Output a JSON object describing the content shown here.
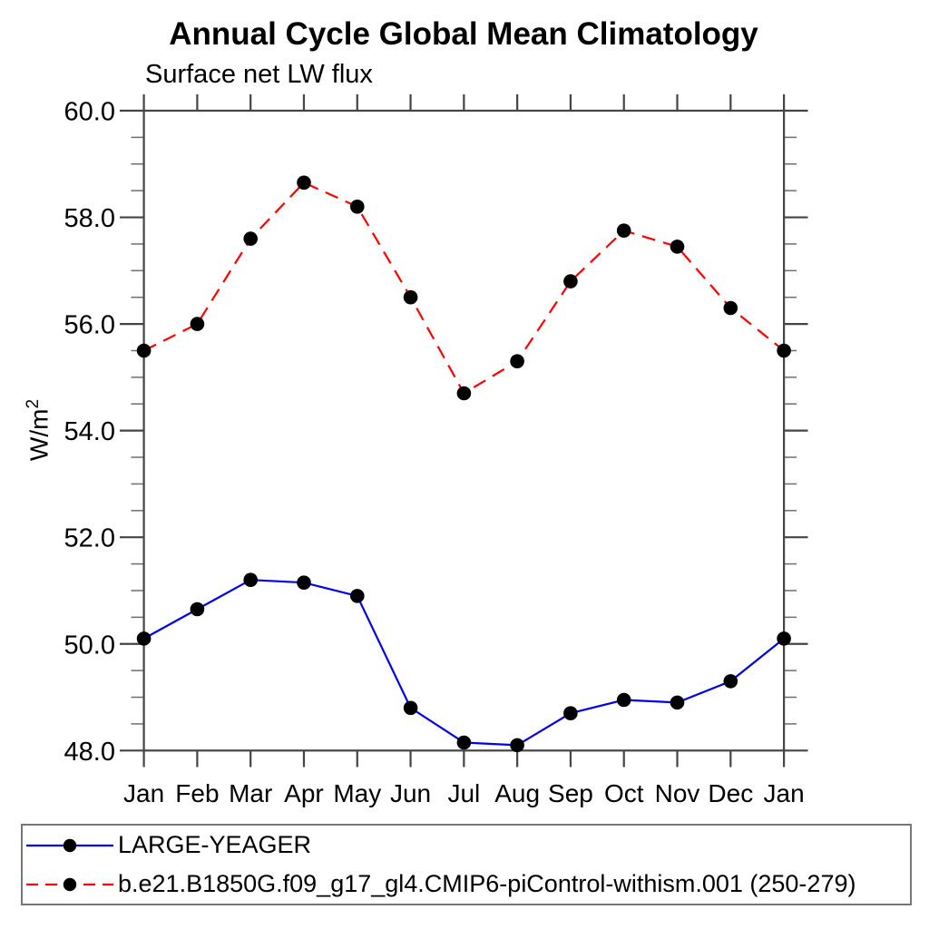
{
  "chart": {
    "title": "Annual Cycle Global Mean Climatology",
    "subtitle": "Surface net LW flux",
    "ylabel_base": "W/m",
    "ylabel_sup": "2"
  },
  "chart_data": {
    "type": "line",
    "title": "Annual Cycle Global Mean Climatology",
    "subtitle": "Surface net LW flux",
    "ylabel": "W/m^2",
    "xlabel": "",
    "categories": [
      "Jan",
      "Feb",
      "Mar",
      "Apr",
      "May",
      "Jun",
      "Jul",
      "Aug",
      "Sep",
      "Oct",
      "Nov",
      "Dec",
      "Jan"
    ],
    "ylim": [
      48.0,
      60.0
    ],
    "ytick_major_step": 2.0,
    "ytick_minor_step": 0.5,
    "ytick_labels": [
      "48.0",
      "50.0",
      "52.0",
      "54.0",
      "56.0",
      "58.0",
      "60.0"
    ],
    "grid": false,
    "legend_position": "bottom-box",
    "marker": "filled-circle",
    "marker_color": "#000000",
    "axis_color": "#444444",
    "series": [
      {
        "name": "LARGE-YEAGER",
        "color": "#0000ee",
        "line_style": "solid",
        "values": [
          50.1,
          50.65,
          51.2,
          51.15,
          50.9,
          48.8,
          48.15,
          48.1,
          48.7,
          48.95,
          48.9,
          49.3,
          50.1
        ]
      },
      {
        "name": "b.e21.B1850G.f09_g17_gl4.CMIP6-piControl-withism.001 (250-279)",
        "color": "#ff0000",
        "line_style": "dashed",
        "values": [
          55.5,
          56.0,
          57.6,
          58.65,
          58.2,
          56.5,
          54.7,
          55.3,
          56.8,
          57.75,
          57.45,
          56.3,
          55.5
        ]
      }
    ]
  }
}
